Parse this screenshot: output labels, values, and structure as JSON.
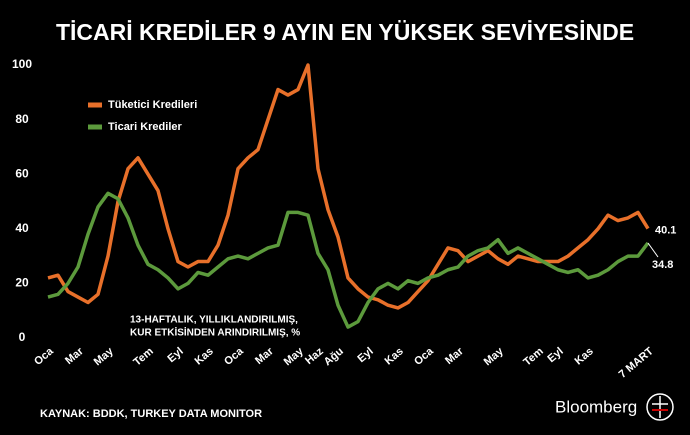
{
  "chart_data": {
    "type": "line",
    "title": "TİCARİ KREDİLER 9 AYIN EN YÜKSEK SEVİYESİNDE",
    "annotation": [
      "13-HAFTALIK, YILLIKLANDIRILMIŞ,",
      "KUR ETKİSİNDEN ARINDIRILMIŞ, %"
    ],
    "source": "KAYNAK: BDDK, TURKEY DATA MONITOR",
    "brand": "Bloomberg",
    "categories": [
      "Oca",
      null,
      null,
      "Mar",
      null,
      null,
      "May",
      null,
      null,
      null,
      "Tem",
      null,
      null,
      "Eyl",
      null,
      null,
      "Kas",
      null,
      null,
      "Oca",
      null,
      null,
      "Mar",
      null,
      null,
      "May",
      null,
      "Haz",
      null,
      "Ağu",
      null,
      null,
      "Eyl",
      null,
      null,
      "Kas",
      null,
      null,
      "Oca",
      null,
      null,
      "Mar",
      null,
      null,
      null,
      "May",
      null,
      null,
      null,
      "Tem",
      null,
      "Eyl",
      null,
      null,
      "Kas",
      null,
      null,
      null,
      null,
      null,
      "7 MART"
    ],
    "series": [
      {
        "name": "Tüketici Kredileri",
        "color": "#e8702a",
        "values": [
          22,
          23,
          17,
          15,
          13,
          16,
          30,
          50,
          62,
          66,
          60,
          54,
          40,
          28,
          26,
          28,
          28,
          34,
          45,
          62,
          66,
          69,
          80,
          91,
          89,
          91,
          100,
          62,
          47,
          37,
          22,
          18,
          15,
          14,
          12,
          11,
          13,
          17,
          21,
          27,
          33,
          32,
          28,
          30,
          32,
          29,
          27,
          30,
          29,
          28,
          28,
          28,
          30,
          33,
          36,
          40,
          45,
          43,
          44,
          46,
          40.1
        ]
      },
      {
        "name": "Ticari Krediler",
        "color": "#5c9a3c",
        "values": [
          15,
          16,
          20,
          26,
          38,
          48,
          53,
          51,
          44,
          34,
          27,
          25,
          22,
          18,
          20,
          24,
          23,
          26,
          29,
          30,
          29,
          31,
          33,
          34,
          46,
          46,
          45,
          31,
          25,
          12,
          4,
          6,
          13,
          18,
          20,
          18,
          21,
          20,
          22,
          23,
          25,
          26,
          30,
          32,
          33,
          36,
          31,
          33,
          31,
          29,
          27,
          25,
          24,
          25,
          22,
          23,
          25,
          28,
          30,
          30,
          34.8
        ]
      }
    ],
    "ylim": [
      0,
      100
    ],
    "yticks": [
      0,
      20,
      40,
      60,
      80,
      100
    ],
    "grid": false,
    "legend": "upper left"
  }
}
